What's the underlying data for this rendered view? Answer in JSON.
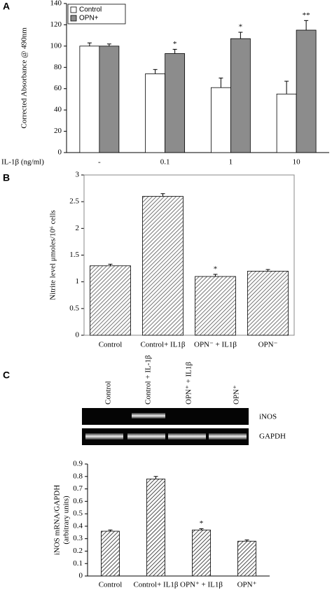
{
  "chart_data": [
    {
      "type": "bar",
      "label": "A",
      "ylabel": [
        "Corrected Absorbance @ 490nm"
      ],
      "xlabel": "IL-1β (ng/ml)",
      "categories": [
        "-",
        "0.1",
        "1",
        "10"
      ],
      "series": [
        {
          "name": "Control",
          "color": "#ffffff",
          "values": [
            100,
            74,
            61,
            55
          ],
          "errors": [
            3,
            4,
            9,
            12
          ],
          "significance": [
            null,
            null,
            null,
            null
          ]
        },
        {
          "name": "OPN+",
          "color": "#8c8c8c",
          "values": [
            100,
            93,
            107,
            115
          ],
          "errors": [
            2,
            4,
            6,
            9
          ],
          "significance": [
            null,
            "*",
            "*",
            "**"
          ]
        }
      ],
      "ylim": [
        0,
        140
      ],
      "yticks": [
        0,
        20,
        40,
        60,
        80,
        100,
        120,
        140
      ],
      "legend": "top-left",
      "hatch": false
    },
    {
      "type": "bar",
      "label": "B",
      "ylabel": [
        "Nitrite level μmoles/10⁶ cells"
      ],
      "categories": [
        "Control",
        "Control+ IL1β",
        "OPN⁻ + IL1β",
        "OPN⁻"
      ],
      "series": [
        {
          "color": "#555555",
          "values": [
            1.3,
            2.6,
            1.1,
            1.2
          ],
          "errors": [
            0.03,
            0.05,
            0.04,
            0.03
          ],
          "significance": [
            null,
            null,
            "*",
            null
          ]
        }
      ],
      "ylim": [
        0,
        3
      ],
      "yticks": [
        0,
        0.5,
        1,
        1.5,
        2,
        2.5,
        3
      ],
      "frame": true,
      "hatch": true
    },
    {
      "type": "bar",
      "label": "C",
      "ylabel": [
        "iNOS mRNA/GAPDH",
        "(arbitrary units)"
      ],
      "categories": [
        "Control",
        "Control+ IL1β",
        "OPN⁺ + IL1β",
        "OPN⁺"
      ],
      "series": [
        {
          "color": "#222222",
          "values": [
            0.36,
            0.78,
            0.37,
            0.28
          ],
          "errors": [
            0.01,
            0.02,
            0.01,
            0.01
          ],
          "significance": [
            null,
            null,
            "*",
            null
          ]
        }
      ],
      "ylim": [
        0,
        0.9
      ],
      "yticks": [
        0,
        0.1,
        0.2,
        0.3,
        0.4,
        0.5,
        0.6,
        0.7,
        0.8,
        0.9
      ],
      "hatch": true
    }
  ],
  "gel": {
    "lanes": [
      "Control",
      "Control + IL-1β",
      "OPN⁺ + IL1β",
      "OPN⁺"
    ],
    "bands": [
      "iNOS",
      "GAPDH"
    ]
  }
}
